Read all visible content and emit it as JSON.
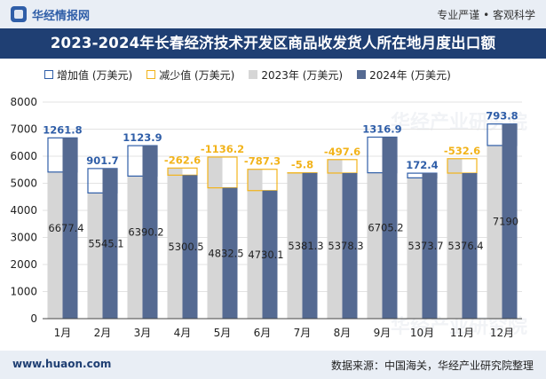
{
  "header": {
    "brand": "华经情报网",
    "tagline": "专业严谨 • 客观科学"
  },
  "legend": {
    "inc": "增加值 (万美元)",
    "dec": "减少值 (万美元)",
    "y1": "2023年 (万美元)",
    "y2": "2024年 (万美元)"
  },
  "footer": {
    "website": "www.huaon.com",
    "source": "数据来源：中国海关，华经产业研究院整理"
  },
  "watermarks": [
    "华经产业研究院",
    "华经产业研究院"
  ],
  "colors": {
    "inc": "#2f5ea8",
    "dec": "#f2b31a",
    "y2023": "#d6d6d6",
    "y2024": "#556a92",
    "title_bg": "#1f3f73"
  },
  "chart_data": {
    "type": "bar",
    "title": "2023-2024年长春经济技术开发区商品收发货人所在地月度出口额",
    "categories": [
      "1月",
      "2月",
      "3月",
      "4月",
      "5月",
      "6月",
      "7月",
      "8月",
      "9月",
      "10月",
      "11月",
      "12月"
    ],
    "ylim": [
      0,
      8000
    ],
    "yticks": [
      0,
      1000,
      2000,
      3000,
      4000,
      5000,
      6000,
      7000,
      8000
    ],
    "series": [
      {
        "name": "2023年 (万美元)",
        "values": [
          5415.6,
          4643.4,
          5266.3,
          5563.1,
          5968.7,
          5517.4,
          5387.1,
          5875.9,
          5388.3,
          5201.3,
          5909.0,
          6396.2
        ]
      },
      {
        "name": "2024年 (万美元)",
        "values": [
          6677.4,
          5545.1,
          6390.2,
          5300.5,
          4832.5,
          4730.1,
          5381.3,
          5378.3,
          6705.2,
          5373.7,
          5376.4,
          7190
        ]
      }
    ],
    "change": [
      1261.8,
      901.7,
      1123.9,
      -262.6,
      -1136.2,
      -787.3,
      -5.8,
      -497.6,
      1316.9,
      172.4,
      -532.6,
      793.8
    ],
    "change_labels": [
      "1261.8",
      "901.7",
      "1123.9",
      "-262.6",
      "-1136.2",
      "-787.3",
      "-5.8",
      "-497.6",
      "1316.9",
      "172.4",
      "-532.6",
      "793.8"
    ],
    "value_labels": [
      "6677.4",
      "5545.1",
      "6390.2",
      "5300.5",
      "4832.5",
      "4730.1",
      "5381.3",
      "5378.3",
      "6705.2",
      "5373.7",
      "5376.4",
      "7190"
    ],
    "change_series_names": [
      "增加值 (万美元)",
      "减少值 (万美元)"
    ]
  }
}
